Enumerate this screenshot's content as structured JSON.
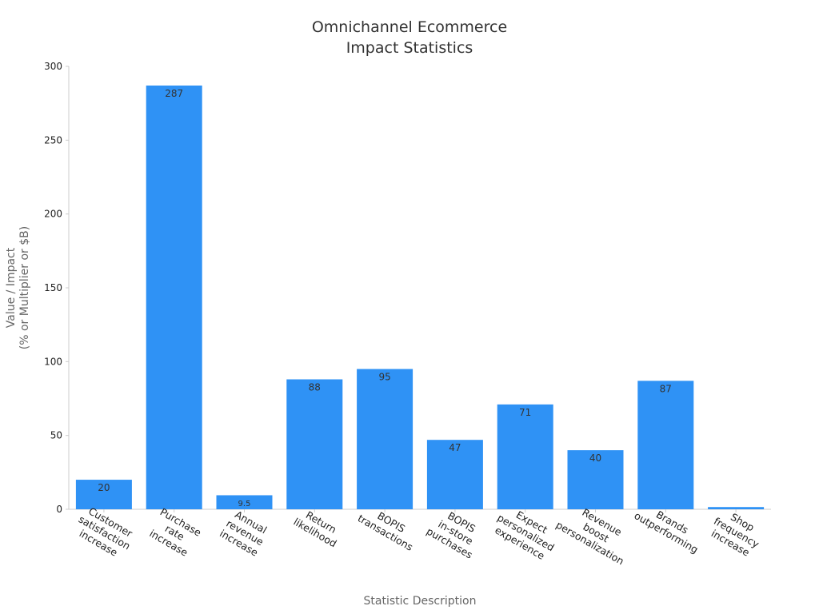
{
  "chart_data": {
    "type": "bar",
    "title": [
      "Omnichannel Ecommerce",
      "Impact Statistics"
    ],
    "xlabel": "Statistic Description",
    "ylabel": [
      "Value / Impact",
      "(% or Multiplier or $B)"
    ],
    "ylim": [
      0,
      300
    ],
    "yticks": [
      0,
      50,
      100,
      150,
      200,
      250,
      300
    ],
    "grid": false,
    "categories": [
      [
        "Customer",
        "satisfaction",
        "increase"
      ],
      [
        "Purchase",
        "rate",
        "increase"
      ],
      [
        "Annual",
        "revenue",
        "increase"
      ],
      [
        "Return",
        "likelihood"
      ],
      [
        "BOPIS",
        "transactions"
      ],
      [
        "BOPIS",
        "in-store",
        "purchases"
      ],
      [
        "Expect",
        "personalized",
        "experience"
      ],
      [
        "Revenue",
        "boost",
        "personalization"
      ],
      [
        "Brands",
        "outperforming"
      ],
      [
        "Shop",
        "frequency",
        "increase"
      ]
    ],
    "values": [
      20,
      287,
      9.5,
      88,
      95,
      47,
      71,
      40,
      87,
      1.5
    ],
    "data_labels": [
      "20",
      "287",
      "9.5",
      "88",
      "95",
      "47",
      "71",
      "40",
      "87",
      ""
    ],
    "bar_color": "#2f92f5"
  }
}
